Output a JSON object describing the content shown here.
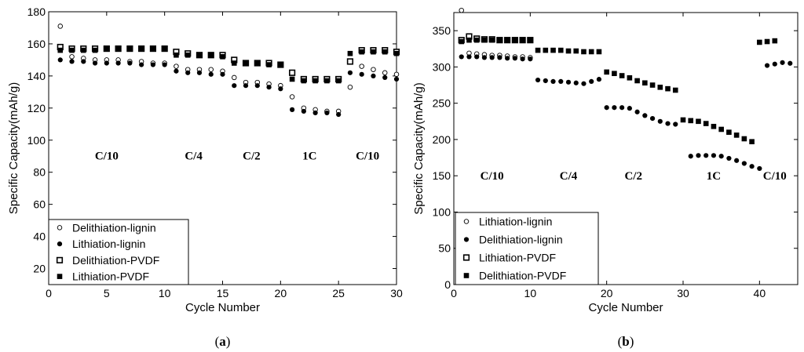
{
  "chart_data": [
    {
      "type": "scatter",
      "panel_label": "(a)",
      "panel_letter": "a",
      "xlabel": "Cycle Number",
      "ylabel": "Specific Capacity(mAh/g)",
      "xlim": [
        0,
        30
      ],
      "ylim": [
        10,
        180
      ],
      "xticks": [
        0,
        5,
        10,
        15,
        20,
        25,
        30
      ],
      "yticks": [
        20,
        40,
        60,
        80,
        100,
        120,
        140,
        160,
        180
      ],
      "legend_position": "bottom-left",
      "rate_labels": [
        {
          "text": "C/10",
          "x": 5,
          "y": 88
        },
        {
          "text": "C/4",
          "x": 12.5,
          "y": 88
        },
        {
          "text": "C/2",
          "x": 17.5,
          "y": 88
        },
        {
          "text": "1C",
          "x": 22.5,
          "y": 88
        },
        {
          "text": "C/10",
          "x": 27.5,
          "y": 88
        }
      ],
      "series": [
        {
          "name": "Delithiation-lignin",
          "marker": "open-circle",
          "x": [
            1,
            2,
            3,
            4,
            5,
            6,
            7,
            8,
            9,
            10,
            11,
            12,
            13,
            14,
            15,
            16,
            17,
            18,
            19,
            20,
            21,
            22,
            23,
            24,
            25,
            26,
            27,
            28,
            29,
            30
          ],
          "y": [
            171,
            152,
            151,
            150,
            150,
            150,
            149,
            149,
            148,
            148,
            146,
            144,
            144,
            144,
            143,
            139,
            136,
            136,
            135,
            134,
            127,
            120,
            119,
            118,
            118,
            133,
            146,
            144,
            142,
            141
          ]
        },
        {
          "name": "Lithiation-lignin",
          "marker": "filled-circle",
          "x": [
            1,
            2,
            3,
            4,
            5,
            6,
            7,
            8,
            9,
            10,
            11,
            12,
            13,
            14,
            15,
            16,
            17,
            18,
            19,
            20,
            21,
            22,
            23,
            24,
            25,
            26,
            27,
            28,
            29,
            30
          ],
          "y": [
            150,
            149,
            149,
            148,
            148,
            148,
            148,
            147,
            147,
            147,
            143,
            142,
            142,
            141,
            141,
            134,
            134,
            134,
            133,
            132,
            119,
            118,
            117,
            117,
            116,
            142,
            141,
            140,
            139,
            138
          ]
        },
        {
          "name": "Delithiation-PVDF",
          "marker": "open-square",
          "x": [
            1,
            2,
            3,
            4,
            5,
            6,
            7,
            8,
            9,
            10,
            11,
            12,
            13,
            14,
            15,
            16,
            17,
            18,
            19,
            20,
            21,
            22,
            23,
            24,
            25,
            26,
            27,
            28,
            29,
            30
          ],
          "y": [
            158,
            157,
            157,
            157,
            157,
            157,
            157,
            157,
            157,
            157,
            155,
            154,
            153,
            153,
            153,
            150,
            148,
            148,
            148,
            147,
            142,
            138,
            138,
            138,
            138,
            149,
            156,
            156,
            156,
            155
          ]
        },
        {
          "name": "Lithiation-PVDF",
          "marker": "filled-square",
          "x": [
            1,
            2,
            3,
            4,
            5,
            6,
            7,
            8,
            9,
            10,
            11,
            12,
            13,
            14,
            15,
            16,
            17,
            18,
            19,
            20,
            21,
            22,
            23,
            24,
            25,
            26,
            27,
            28,
            29,
            30
          ],
          "y": [
            156,
            156,
            156,
            156,
            157,
            157,
            157,
            157,
            157,
            157,
            153,
            153,
            153,
            153,
            152,
            148,
            148,
            148,
            147,
            147,
            138,
            137,
            137,
            137,
            137,
            154,
            155,
            155,
            155,
            154
          ]
        }
      ]
    },
    {
      "type": "scatter",
      "panel_label": "(b)",
      "panel_letter": "b",
      "xlabel": "Cycle Number",
      "ylabel": "Specific Capacity(mAh/g)",
      "xlim": [
        0,
        45
      ],
      "ylim": [
        0,
        375
      ],
      "xticks": [
        0,
        10,
        20,
        30,
        40
      ],
      "yticks": [
        0,
        50,
        100,
        150,
        200,
        250,
        300,
        350
      ],
      "legend_position": "bottom-left",
      "rate_labels": [
        {
          "text": "C/10",
          "x": 5,
          "y": 145
        },
        {
          "text": "C/4",
          "x": 15,
          "y": 145
        },
        {
          "text": "C/2",
          "x": 23.5,
          "y": 145
        },
        {
          "text": "1C",
          "x": 34,
          "y": 145
        },
        {
          "text": "C/10",
          "x": 42,
          "y": 145
        }
      ],
      "series": [
        {
          "name": "Lithiation-lignin",
          "marker": "open-circle",
          "x": [
            1,
            2,
            3,
            4,
            5,
            6,
            7,
            8,
            9,
            10
          ],
          "y": [
            378,
            319,
            318,
            317,
            316,
            316,
            315,
            314,
            314,
            313
          ]
        },
        {
          "name": "Delithiation-lignin",
          "marker": "filled-circle",
          "x": [
            1,
            2,
            3,
            4,
            5,
            6,
            7,
            8,
            9,
            10,
            11,
            12,
            13,
            14,
            15,
            16,
            17,
            18,
            19,
            20,
            21,
            22,
            23,
            24,
            25,
            26,
            27,
            28,
            29,
            31,
            32,
            33,
            34,
            35,
            36,
            37,
            38,
            39,
            40,
            41,
            42,
            43,
            44
          ],
          "y": [
            314,
            314,
            314,
            313,
            313,
            313,
            312,
            312,
            311,
            311,
            282,
            281,
            280,
            280,
            279,
            278,
            277,
            280,
            283,
            244,
            244,
            244,
            243,
            238,
            233,
            229,
            225,
            222,
            221,
            177,
            178,
            178,
            178,
            177,
            174,
            171,
            167,
            163,
            160,
            302,
            304,
            306,
            305
          ]
        },
        {
          "name": "Lithiation-PVDF",
          "marker": "open-square",
          "x": [
            1,
            2,
            3,
            4,
            5,
            6,
            7,
            8,
            9,
            10
          ],
          "y": [
            337,
            342,
            339,
            338,
            338,
            337,
            337,
            337,
            337,
            337
          ]
        },
        {
          "name": "Delithiation-PVDF",
          "marker": "filled-square",
          "x": [
            1,
            2,
            3,
            4,
            5,
            6,
            7,
            8,
            9,
            10,
            11,
            12,
            13,
            14,
            15,
            16,
            17,
            18,
            19,
            20,
            21,
            22,
            23,
            24,
            25,
            26,
            27,
            28,
            29,
            30,
            31,
            32,
            33,
            34,
            35,
            36,
            37,
            38,
            39,
            40,
            41,
            42
          ],
          "y": [
            335,
            337,
            337,
            337,
            337,
            337,
            337,
            337,
            337,
            337,
            323,
            323,
            323,
            323,
            322,
            322,
            321,
            321,
            321,
            293,
            291,
            288,
            285,
            281,
            278,
            275,
            272,
            270,
            268,
            227,
            226,
            225,
            222,
            218,
            214,
            210,
            206,
            201,
            197,
            334,
            335,
            336
          ]
        }
      ]
    }
  ]
}
